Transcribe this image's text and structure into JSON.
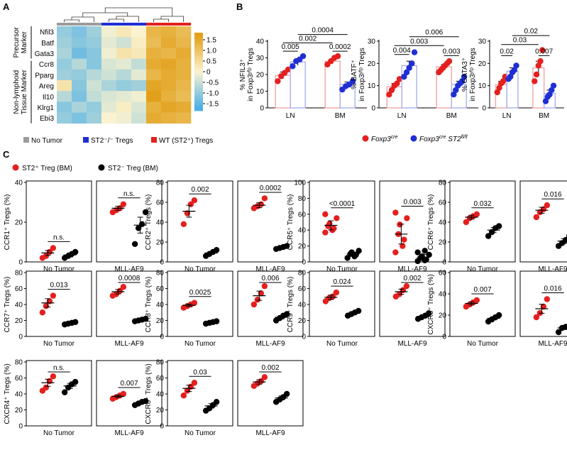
{
  "colors": {
    "red": "#e4201f",
    "blue": "#1f2fd4",
    "black": "#000000",
    "gray": "#9b9b9b",
    "bar_red": "#f3a6a6",
    "bar_blue": "#a9b0ee",
    "heat_low": "#4fb0e6",
    "heat_mid": "#fbf3cf",
    "heat_high": "#e2a01a"
  },
  "panel_labels": {
    "a": "A",
    "b": "B",
    "c": "C"
  },
  "heatmap": {
    "genes": [
      "Nfil3",
      "Batf",
      "Gata3",
      "Ccr8",
      "Pparg",
      "Areg",
      "Il10",
      "Klrg1",
      "Ebi3"
    ],
    "group_precursor": "Precursor\nMarker",
    "group_precursor_lines": [
      "Precursor",
      "Marker"
    ],
    "group_nonlymphoid_lines": [
      "Non-lymphoid",
      "Tissue Marker"
    ],
    "colorbar_ticks": [
      "1.5",
      "1.0",
      "0.5",
      "0",
      "-0.5",
      "-1.0",
      "-1.5"
    ],
    "legend": [
      "No Tumor",
      "ST2⁻/⁻ Tregs",
      "WT (ST2⁺) Tregs"
    ],
    "values": [
      [
        -0.9,
        -1.1,
        -0.8,
        -0.1,
        0.2,
        0.0,
        1.1,
        1.2,
        1.0
      ],
      [
        -0.8,
        -1.0,
        -0.9,
        -0.2,
        -0.4,
        0.1,
        1.0,
        1.3,
        1.1
      ],
      [
        -0.7,
        -1.2,
        -1.0,
        -0.1,
        0.3,
        0.2,
        1.2,
        1.1,
        1.3
      ],
      [
        -0.9,
        -0.6,
        -1.0,
        -0.3,
        -0.2,
        -0.5,
        1.3,
        1.4,
        1.2
      ],
      [
        -0.8,
        -0.9,
        -0.6,
        -0.4,
        -0.6,
        -0.2,
        1.1,
        1.3,
        1.2
      ],
      [
        0.3,
        -1.0,
        -0.4,
        -0.7,
        -0.9,
        -0.8,
        1.4,
        1.3,
        1.1
      ],
      [
        -0.6,
        -1.1,
        -0.5,
        -0.3,
        -0.2,
        -0.1,
        1.5,
        1.2,
        1.0
      ],
      [
        -1.0,
        -0.7,
        -0.9,
        -0.2,
        0.1,
        -0.3,
        1.2,
        1.4,
        1.3
      ],
      [
        -0.9,
        -1.1,
        -0.8,
        0.0,
        -0.1,
        -0.4,
        1.3,
        1.2,
        1.1
      ]
    ]
  },
  "b_panels": [
    {
      "ylabel1": "% NFIL3⁺",
      "ylabel2": "in Foxp3ʸᶠᵖ Tregs",
      "ymax": 40,
      "yticks": [
        0,
        10,
        20,
        30,
        40
      ],
      "groups": [
        "LN",
        "BM"
      ],
      "bars": [
        19.5,
        27.5,
        28,
        14
      ],
      "errs": [
        2,
        2,
        1.5,
        1.5
      ],
      "points": [
        [
          16,
          19,
          21,
          23
        ],
        [
          25,
          28,
          29,
          31
        ],
        [
          26,
          28,
          30,
          31
        ],
        [
          11,
          13,
          14,
          16
        ]
      ],
      "pvals": [
        {
          "text": "0.005",
          "from": 0,
          "to": 1,
          "y": 34
        },
        {
          "text": "0.0002",
          "from": 2,
          "to": 3,
          "y": 34
        },
        {
          "text": "0.002",
          "from": 0,
          "to": 2,
          "y": 39
        },
        {
          "text": "0.0004",
          "from": 1,
          "to": 3,
          "y": 44
        }
      ]
    },
    {
      "ylabel1": "% BATF⁺",
      "ylabel2": "in Foxp3ʸᶠᵖ Tregs",
      "ymax": 30,
      "yticks": [
        0,
        10,
        20,
        30
      ],
      "groups": [
        "LN",
        "BM"
      ],
      "bars": [
        9.5,
        19,
        18.5,
        10.5
      ],
      "errs": [
        1.5,
        2,
        1,
        1.5
      ],
      "points": [
        [
          6,
          8,
          10,
          11,
          13
        ],
        [
          14,
          16,
          18,
          20,
          25
        ],
        [
          16,
          17,
          18,
          19,
          20,
          21
        ],
        [
          6,
          8,
          10,
          11,
          12,
          14
        ]
      ],
      "pvals": [
        {
          "text": "0.004",
          "from": 0,
          "to": 1,
          "y": 24
        },
        {
          "text": "0.003",
          "from": 2,
          "to": 3,
          "y": 23.5
        },
        {
          "text": "0.003",
          "from": 0,
          "to": 2,
          "y": 28
        },
        {
          "text": "0.006",
          "from": 1,
          "to": 3,
          "y": 32
        }
      ]
    },
    {
      "ylabel1": "% GATA3⁺",
      "ylabel2": "in Foxp3ʸᶠᵖ Tregs",
      "ymax": 30,
      "yticks": [
        0,
        10,
        20,
        30
      ],
      "groups": [
        "LN",
        "BM"
      ],
      "bars": [
        10.5,
        16.5,
        18,
        6.5
      ],
      "errs": [
        1.5,
        1.5,
        3,
        1.5
      ],
      "points": [
        [
          7,
          9,
          11,
          12,
          14
        ],
        [
          13,
          14,
          16,
          17,
          19
        ],
        [
          12,
          15,
          19,
          21,
          26
        ],
        [
          3,
          5,
          6,
          8,
          10
        ]
      ],
      "pvals": [
        {
          "text": "0.02",
          "from": 0,
          "to": 1,
          "y": 23.5
        },
        {
          "text": "0.007",
          "from": 2,
          "to": 3,
          "y": 23.5
        },
        {
          "text": "0.03",
          "from": 0,
          "to": 2,
          "y": 28.5
        },
        {
          "text": "0.02",
          "from": 1,
          "to": 3,
          "y": 32.5
        }
      ]
    }
  ],
  "b_legend": {
    "foxp3": "Foxp3",
    "foxp3_sup": "cre",
    "st2": "Foxp3",
    "st2_sup": "cre",
    "st2_gene": " ST2",
    "st2_gene_sup": "fl/fl"
  },
  "c_legend": {
    "pos": "ST2⁺ Treg (BM)",
    "neg": "ST2⁻ Treg (BM)"
  },
  "c_rows": [
    [
      {
        "ylabel": "CCR1⁺ Tregs (%)",
        "ymax": 40,
        "yticks": [
          0,
          20,
          40
        ],
        "sub": [
          {
            "label": "No Tumor",
            "p": "n.s.",
            "red": [
              2,
              3,
              5,
              7
            ],
            "black": [
              2,
              3,
              4,
              5
            ],
            "rm": 4.5,
            "bm": 3.5
          },
          {
            "label": "MLL-AF9",
            "p": "n.s.",
            "red": [
              25,
              26,
              27,
              29
            ],
            "black": [
              9,
              17,
              19,
              25
            ],
            "rm": 27,
            "bm": 18.5
          }
        ]
      },
      {
        "ylabel": "CCR2⁺ Tregs (%)",
        "ymax": 80,
        "yticks": [
          0,
          20,
          40,
          60,
          80
        ],
        "sub": [
          {
            "label": "No Tumor",
            "p": "0.002",
            "red": [
              38,
              49,
              58,
              62
            ],
            "black": [
              6,
              8,
              10,
              12
            ],
            "rm": 51,
            "bm": 9
          },
          {
            "label": "MLL-AF9",
            "p": "0.0002",
            "red": [
              54,
              56,
              58,
              64
            ],
            "black": [
              13,
              14,
              15,
              16
            ],
            "rm": 57,
            "bm": 14
          }
        ]
      },
      {
        "ylabel": "CCR5⁺ Tregs (%)",
        "ymax": 100,
        "yticks": [
          0,
          20,
          40,
          60,
          80,
          100
        ],
        "sub": [
          {
            "label": "No Tumor",
            "p": "<0.0001",
            "red": [
              37,
              40,
              42,
              45,
              48,
              55,
              60
            ],
            "black": [
              5,
              7,
              9,
              10,
              12,
              14
            ],
            "rm": 46,
            "bm": 10
          },
          {
            "label": "MLL-AF9",
            "p": "0.003",
            "red": [
              12,
              20,
              28,
              35,
              47,
              55,
              62
            ],
            "black": [
              1,
              2,
              3,
              5,
              7,
              9,
              12,
              14
            ],
            "rm": 35,
            "bm": 6
          }
        ]
      },
      {
        "ylabel": "CCR6⁺ Tregs (%)",
        "ymax": 80,
        "yticks": [
          0,
          20,
          40,
          60,
          80
        ],
        "sub": [
          {
            "label": "No Tumor",
            "p": "0.032",
            "red": [
              40,
              44,
              46,
              48
            ],
            "black": [
              26,
              30,
              34,
              36
            ],
            "rm": 45,
            "bm": 32
          },
          {
            "label": "MLL-AF9",
            "p": "0.016",
            "red": [
              45,
              50,
              53,
              57
            ],
            "black": [
              16,
              19,
              22,
              26
            ],
            "rm": 52,
            "bm": 21
          }
        ]
      }
    ],
    [
      {
        "ylabel": "CCR7⁺ Tregs (%)",
        "ymax": 80,
        "yticks": [
          0,
          20,
          40,
          60,
          80
        ],
        "sub": [
          {
            "label": "No Tumor",
            "p": "0.013",
            "red": [
              30,
              38,
              44,
              51
            ],
            "black": [
              15,
              16,
              17,
              18
            ],
            "rm": 42,
            "bm": 16.5
          },
          {
            "label": "MLL-AF9",
            "p": "0.0008",
            "red": [
              51,
              53,
              57,
              62
            ],
            "black": [
              19,
              20,
              21,
              22
            ],
            "rm": 56,
            "bm": 20.5
          }
        ]
      },
      {
        "ylabel": "CCR8⁺ Tregs (%)",
        "ymax": 80,
        "yticks": [
          0,
          20,
          40,
          60,
          80
        ],
        "sub": [
          {
            "label": "No Tumor",
            "p": "0.0025",
            "red": [
              36,
              38,
              40,
              42
            ],
            "black": [
              16,
              17,
              18,
              19
            ],
            "rm": 39,
            "bm": 18
          },
          {
            "label": "MLL-AF9",
            "p": "0.006",
            "red": [
              40,
              46,
              54,
              63
            ],
            "black": [
              20,
              23,
              26,
              28
            ],
            "rm": 51,
            "bm": 24
          }
        ]
      },
      {
        "ylabel": "CCR9⁺ Tregs (%)",
        "ymax": 80,
        "yticks": [
          0,
          20,
          40,
          60,
          80
        ],
        "sub": [
          {
            "label": "No Tumor",
            "p": "0.024",
            "red": [
              44,
              48,
              50,
              55
            ],
            "black": [
              26,
              28,
              30,
              32
            ],
            "rm": 49,
            "bm": 29
          },
          {
            "label": "MLL-AF9",
            "p": "0.002",
            "red": [
              50,
              53,
              58,
              63
            ],
            "black": [
              22,
              24,
              26,
              29
            ],
            "rm": 56,
            "bm": 25
          }
        ]
      },
      {
        "ylabel": "CXCR3⁺ Tregs (%)",
        "ymax": 60,
        "yticks": [
          0,
          20,
          40,
          60
        ],
        "sub": [
          {
            "label": "No Tumor",
            "p": "0.007",
            "red": [
              28,
              30,
              32,
              34
            ],
            "black": [
              14,
              16,
              18,
              20
            ],
            "rm": 31,
            "bm": 17
          },
          {
            "label": "MLL-AF9",
            "p": "0.016",
            "red": [
              18,
              22,
              28,
              35
            ],
            "black": [
              4,
              8,
              9,
              10
            ],
            "rm": 26,
            "bm": 8
          }
        ]
      }
    ],
    [
      {
        "ylabel": "CXCR4⁺ Tregs (%)",
        "ymax": 80,
        "yticks": [
          0,
          20,
          40,
          60,
          80
        ],
        "sub": [
          {
            "label": "No Tumor",
            "p": "n.s.",
            "red": [
              44,
              48,
              56,
              62
            ],
            "black": [
              42,
              48,
              52,
              55
            ],
            "rm": 54,
            "bm": 50
          },
          {
            "label": "MLL-AF9",
            "p": "0.007",
            "red": [
              34,
              36,
              38,
              40
            ],
            "black": [
              26,
              28,
              30,
              31
            ],
            "rm": 37,
            "bm": 28.5
          }
        ]
      },
      {
        "ylabel": "CXCR6⁺ Tregs (%)",
        "ymax": 80,
        "yticks": [
          0,
          20,
          40,
          60,
          80
        ],
        "sub": [
          {
            "label": "No Tumor",
            "p": "0.03",
            "red": [
              38,
              44,
              49,
              54
            ],
            "black": [
              19,
              22,
              26,
              30
            ],
            "rm": 47,
            "bm": 25
          },
          {
            "label": "MLL-AF9",
            "p": "0.002",
            "red": [
              50,
              53,
              56,
              61
            ],
            "black": [
              30,
              33,
              36,
              40
            ],
            "rm": 55,
            "bm": 35
          }
        ]
      }
    ]
  ]
}
